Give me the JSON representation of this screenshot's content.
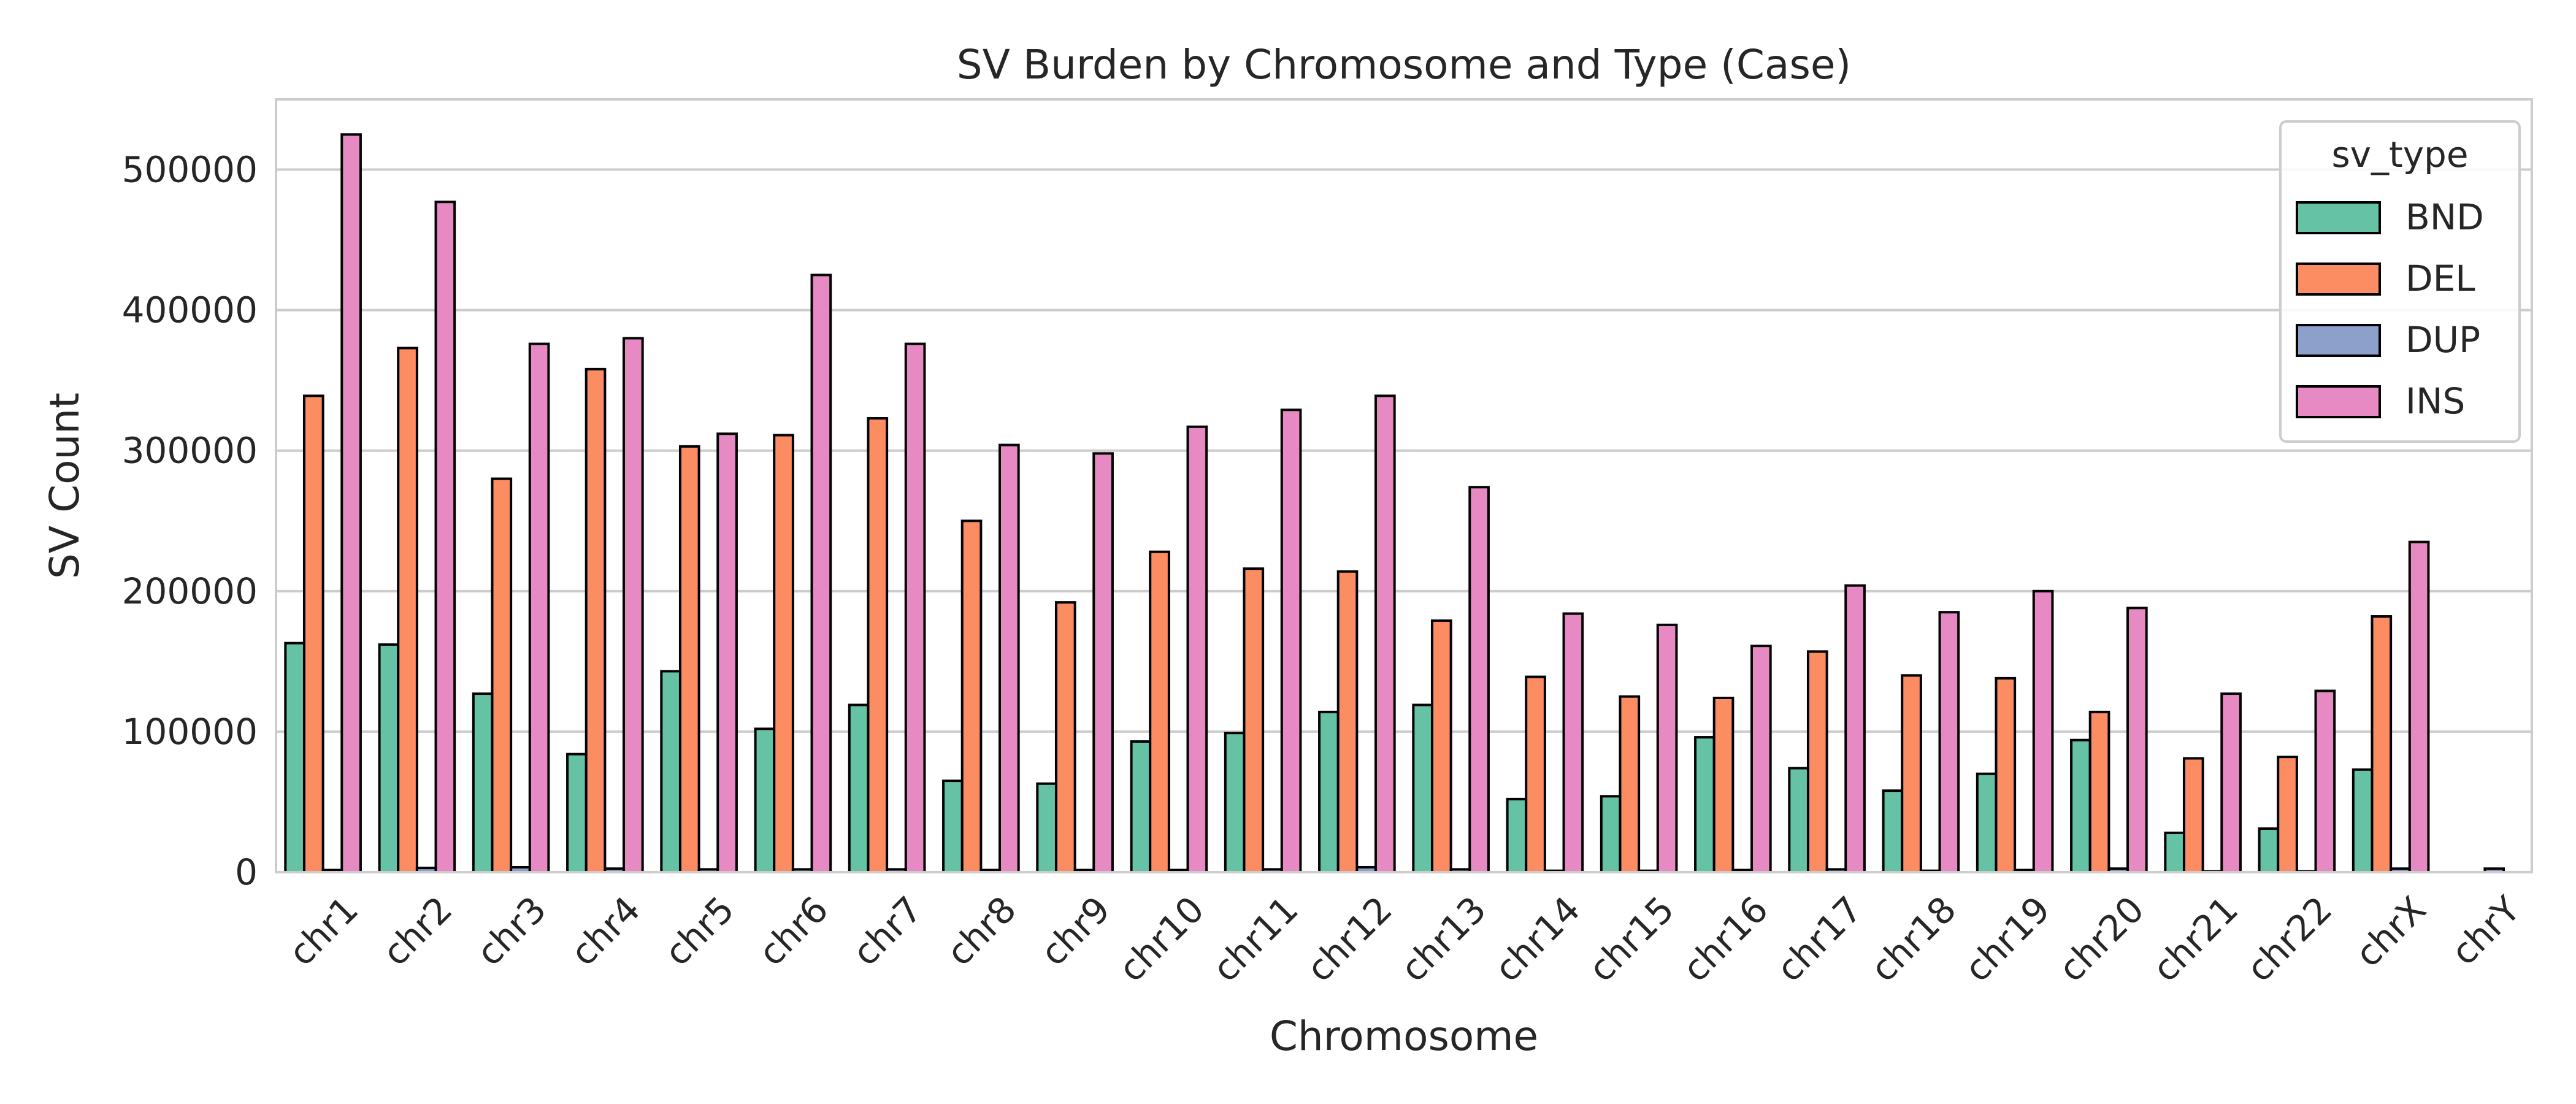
{
  "chart_data": {
    "type": "bar",
    "title": "SV Burden by Chromosome and Type (Case)",
    "xlabel": "Chromosome",
    "ylabel": "SV Count",
    "ylim": [
      0,
      550000
    ],
    "yticks": [
      0,
      100000,
      200000,
      300000,
      400000,
      500000
    ],
    "grid": true,
    "legend": {
      "title": "sv_type",
      "placement": "top-right"
    },
    "categories": [
      "chr1",
      "chr2",
      "chr3",
      "chr4",
      "chr5",
      "chr6",
      "chr7",
      "chr8",
      "chr9",
      "chr10",
      "chr11",
      "chr12",
      "chr13",
      "chr14",
      "chr15",
      "chr16",
      "chr17",
      "chr18",
      "chr19",
      "chr20",
      "chr21",
      "chr22",
      "chrX",
      "chrY"
    ],
    "series": [
      {
        "name": "BND",
        "color": "#66c2a5",
        "values": [
          163000,
          162000,
          127000,
          84000,
          143000,
          102000,
          119000,
          65000,
          63000,
          93000,
          99000,
          114000,
          119000,
          52000,
          54000,
          96000,
          74000,
          58000,
          70000,
          94000,
          28000,
          31000,
          73000,
          0
        ]
      },
      {
        "name": "DEL",
        "color": "#fc8d62",
        "values": [
          339000,
          373000,
          280000,
          358000,
          303000,
          311000,
          323000,
          250000,
          192000,
          228000,
          216000,
          214000,
          179000,
          139000,
          125000,
          124000,
          157000,
          140000,
          138000,
          114000,
          81000,
          82000,
          182000,
          0
        ]
      },
      {
        "name": "DUP",
        "color": "#8da0cb",
        "values": [
          1500,
          3000,
          3500,
          2500,
          2000,
          2000,
          2000,
          1500,
          1500,
          1500,
          2000,
          3500,
          2000,
          1000,
          1000,
          1500,
          2000,
          1000,
          1500,
          2500,
          500,
          500,
          2500,
          2500
        ]
      },
      {
        "name": "INS",
        "color": "#e78ac3",
        "values": [
          525000,
          477000,
          376000,
          380000,
          312000,
          425000,
          376000,
          304000,
          298000,
          317000,
          329000,
          339000,
          274000,
          184000,
          176000,
          161000,
          204000,
          185000,
          200000,
          188000,
          127000,
          129000,
          235000,
          0
        ]
      }
    ]
  }
}
